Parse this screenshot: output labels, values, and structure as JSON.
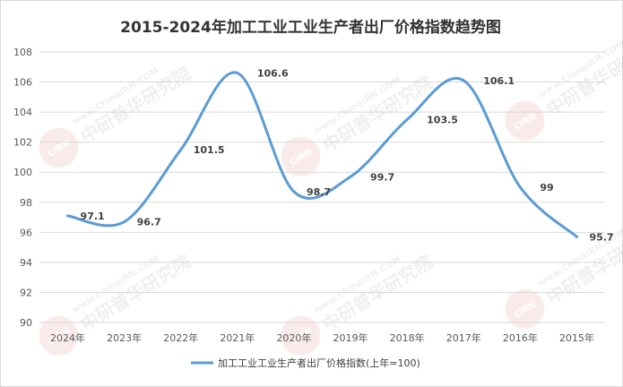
{
  "chart_data": {
    "type": "line",
    "title": "2015-2024年加工工业工业生产者出厂价格指数趋势图",
    "categories": [
      "2024年",
      "2023年",
      "2022年",
      "2021年",
      "2020年",
      "2019年",
      "2018年",
      "2017年",
      "2016年",
      "2015年"
    ],
    "series": [
      {
        "name": "加工工业工业生产者出厂价格指数(上年=100)",
        "values": [
          97.1,
          96.7,
          101.5,
          106.6,
          98.7,
          99.7,
          103.5,
          106.1,
          99,
          95.7
        ],
        "data_labels": [
          "97.1",
          "96.7",
          "101.5",
          "106.6",
          "98.7",
          "99.7",
          "103.5",
          "106.1",
          "99",
          "95.7"
        ]
      }
    ],
    "yticks": [
      "108",
      "106",
      "104",
      "102",
      "100",
      "98",
      "96",
      "94",
      "92",
      "90"
    ],
    "ylim": [
      90,
      108
    ],
    "grid": true,
    "legend_position": "bottom",
    "line_color": "#5b9bd5"
  },
  "watermark": {
    "url": "www.ChinaIRN.COM",
    "name": "中研普华研究院",
    "badge": "CIRN"
  }
}
